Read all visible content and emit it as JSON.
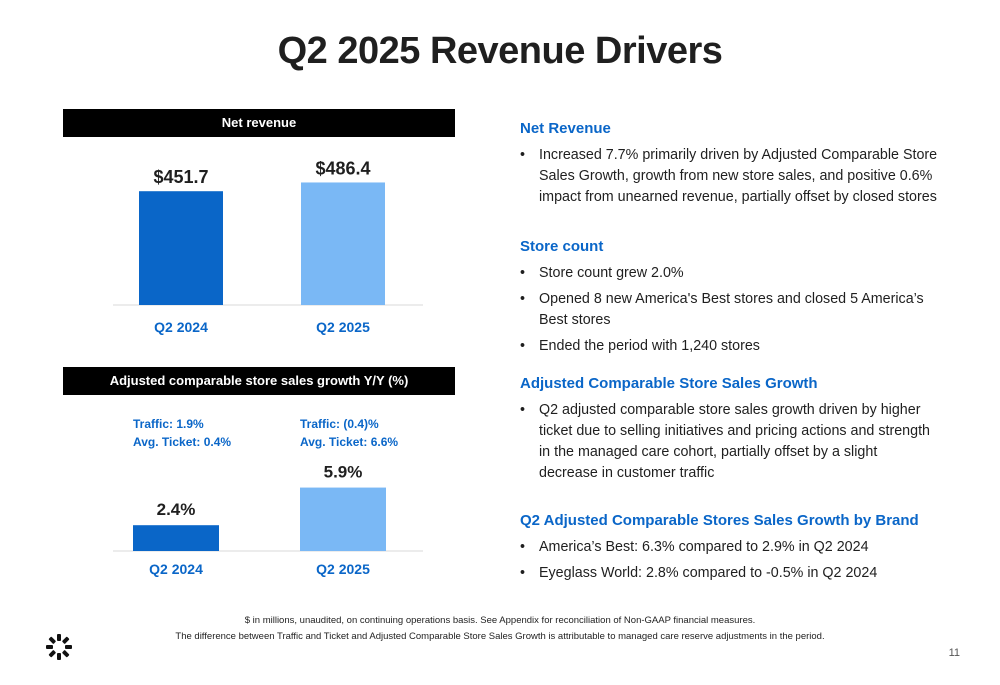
{
  "title": "Q2 2025 Revenue Drivers",
  "chart_data": [
    {
      "type": "bar",
      "title": "Net revenue",
      "categories": [
        "Q2 2024",
        "Q2 2025"
      ],
      "values": [
        451.7,
        486.4
      ],
      "value_labels": [
        "$451.7",
        "$486.4"
      ],
      "colors": [
        "#0a66c8",
        "#7ab8f5"
      ],
      "ylim": [
        0,
        520
      ],
      "legend": "none",
      "grid": false
    },
    {
      "type": "bar",
      "title": "Adjusted comparable store sales growth Y/Y (%)",
      "categories": [
        "Q2 2024",
        "Q2 2025"
      ],
      "values": [
        2.4,
        5.9
      ],
      "value_labels": [
        "2.4%",
        "5.9%"
      ],
      "colors": [
        "#0a66c8",
        "#7ab8f5"
      ],
      "ylim": [
        0,
        8
      ],
      "legend": "none",
      "grid": false,
      "annotations": [
        {
          "category": "Q2 2024",
          "lines": [
            "Traffic: 1.9%",
            "Avg. Ticket: 0.4%"
          ]
        },
        {
          "category": "Q2 2025",
          "lines": [
            "Traffic: (0.4)%",
            "Avg. Ticket: 6.6%"
          ]
        }
      ]
    }
  ],
  "right": {
    "sections": [
      {
        "title": "Net Revenue",
        "bullets": [
          "Increased 7.7% primarily driven by Adjusted Comparable Store Sales Growth, growth from new store sales, and positive 0.6% impact from unearned revenue, partially offset by closed stores"
        ]
      },
      {
        "title": "Store count",
        "bullets": [
          "Store count grew 2.0%",
          "Opened 8 new America's Best stores and closed 5 America’s Best stores",
          "Ended the period with 1,240 stores"
        ]
      },
      {
        "title": "Adjusted Comparable Store Sales Growth",
        "bullets": [
          "Q2 adjusted comparable store sales growth driven by higher ticket due to selling initiatives and pricing actions and strength in the managed care cohort, partially offset by a slight decrease in customer traffic"
        ]
      },
      {
        "title": "Q2 Adjusted Comparable Stores Sales Growth by Brand",
        "bullets": [
          "America’s Best: 6.3% compared to 2.9% in Q2 2024",
          "Eyeglass World: 2.8% compared to -0.5% in Q2 2024"
        ]
      }
    ]
  },
  "footnotes": [
    "$ in millions, unaudited, on continuing operations basis. See Appendix for reconciliation of Non-GAAP financial measures.",
    "The difference between Traffic and Ticket and Adjusted Comparable Store Sales Growth is attributable to managed care reserve adjustments in the period."
  ],
  "page_number": "11"
}
